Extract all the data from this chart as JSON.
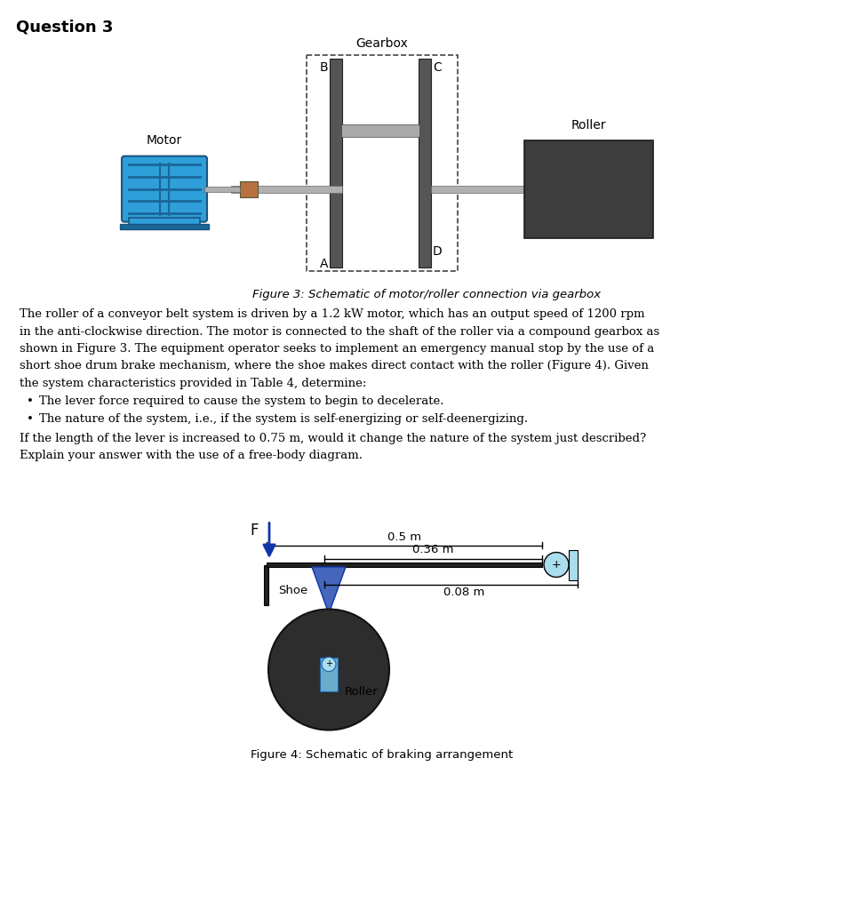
{
  "title": "Question 3",
  "fig3_caption": "Figure 3: Schematic of motor/roller connection via gearbox",
  "fig4_caption": "Figure 4: Schematic of braking arrangement",
  "bullet1": "The lever force required to cause the system to begin to decelerate.",
  "bullet2": "The nature of the system, i.e., if the system is self-energizing or self-deenergizing.",
  "last_line1": "If the length of the lever is increased to 0.75 m, would it change the nature of the system just described?",
  "last_line2": "Explain your answer with the use of a free-body diagram.",
  "motor_blue": "#2e9fd8",
  "motor_dark_blue": "#1a6699",
  "motor_shaft_color": "#b87040",
  "gear_color": "#555555",
  "roller_box_color": "#3d3d3d",
  "gearbox_label": "Gearbox",
  "motor_label": "Motor",
  "roller_label": "Roller",
  "label_A": "A",
  "label_B": "B",
  "label_C": "C",
  "label_D": "D",
  "brake_drum_color": "#2d2d2d",
  "brake_shoe_color": "#3355aa",
  "dim_05": "0.5 m",
  "dim_036": "0.36 m",
  "dim_008": "0.08 m",
  "shoe_label": "Shoe",
  "roller_label2": "Roller",
  "force_label": "F",
  "shaft_gray": "#b0b0b0",
  "inner_shaft_color": "#6aaccc"
}
